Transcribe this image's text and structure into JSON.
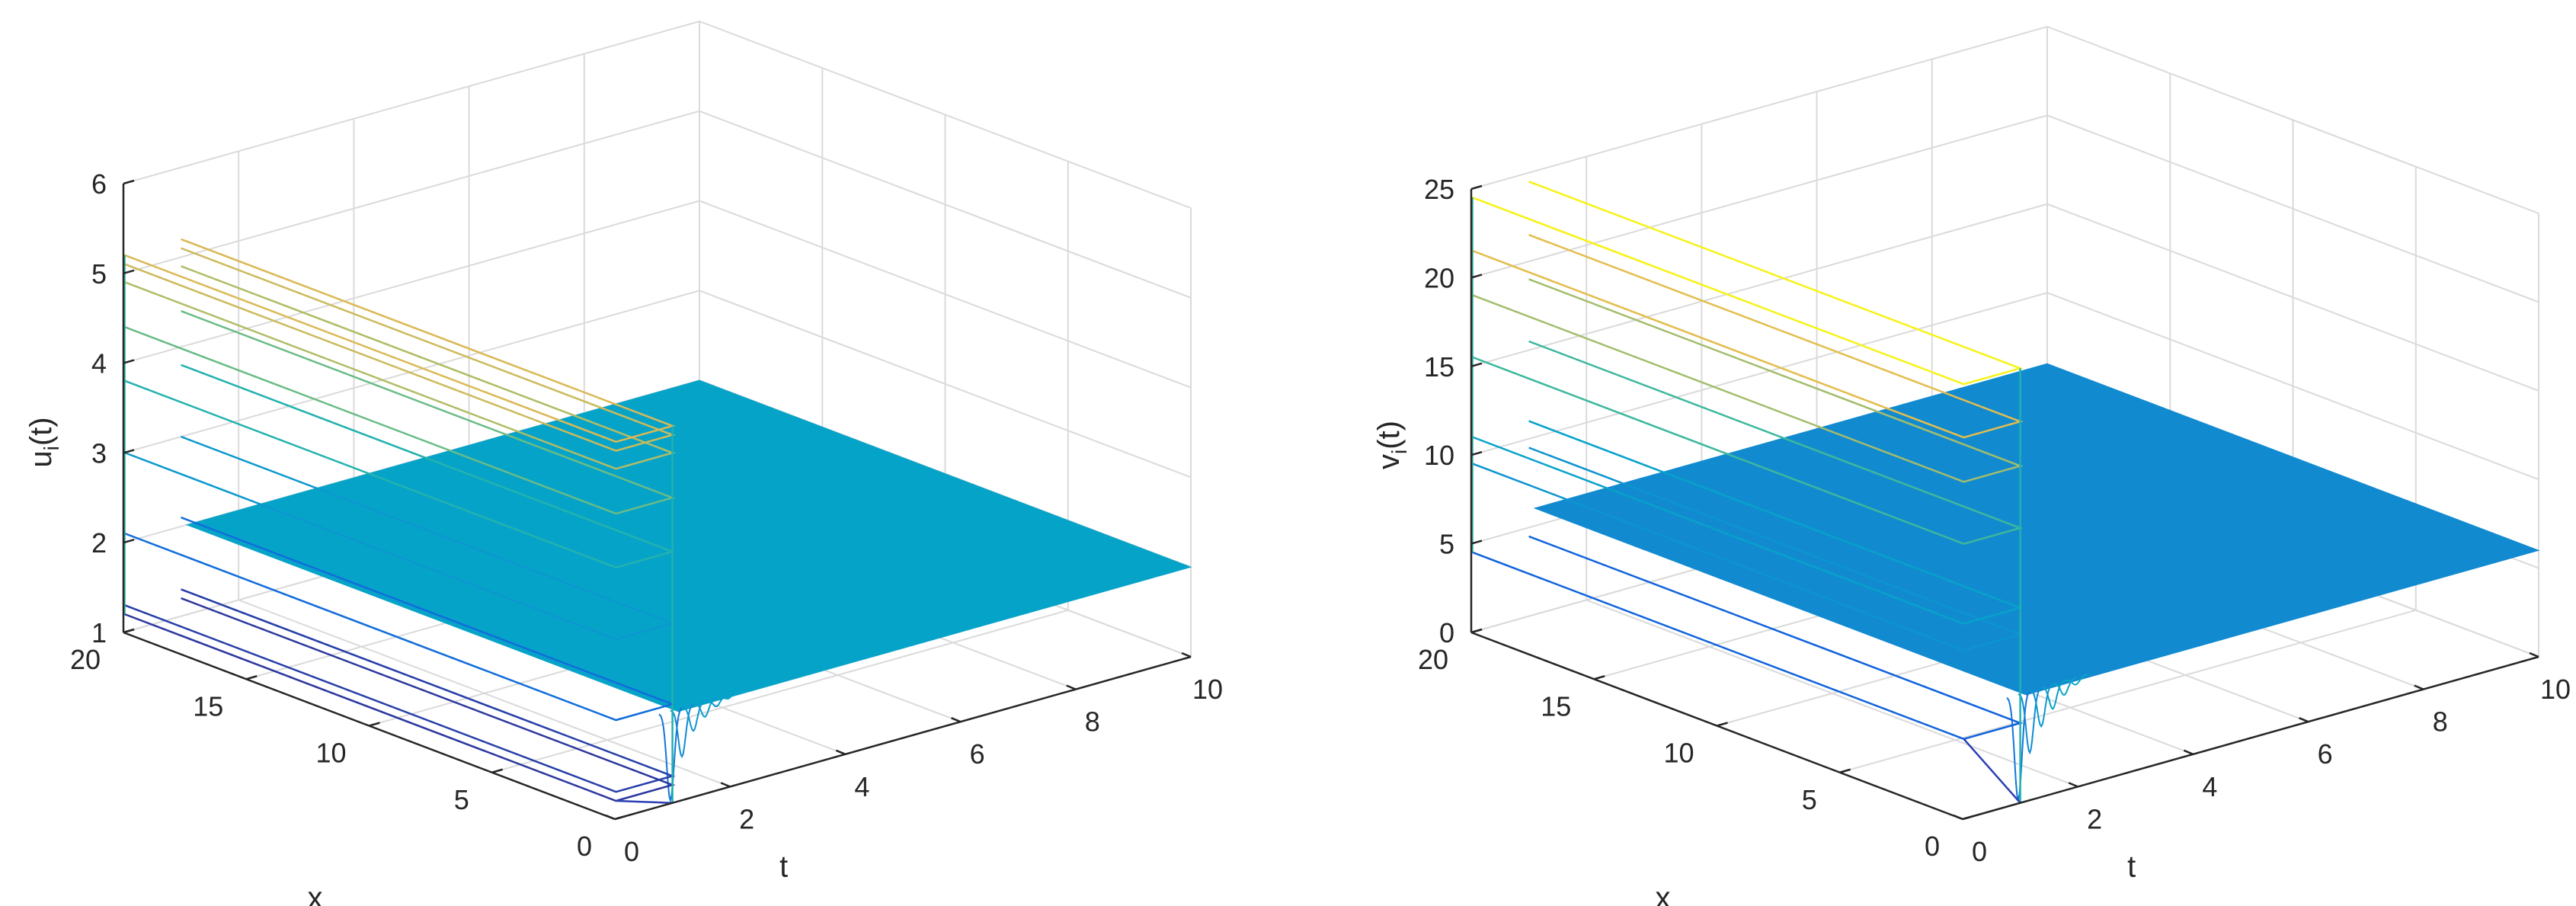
{
  "chart_data": [
    {
      "type": "surface",
      "zlabel": "u",
      "zlabel_sub": "i",
      "zlabel_suffix": "(t)",
      "xlabel": "t",
      "ylabel": "x",
      "xlim": [
        0,
        10
      ],
      "ylim": [
        0,
        20
      ],
      "zlim": [
        1,
        6
      ],
      "xticks": [
        0,
        2,
        4,
        6,
        8,
        10
      ],
      "yticks": [
        0,
        5,
        10,
        15,
        20
      ],
      "zticks": [
        1,
        2,
        3,
        4,
        5,
        6
      ],
      "grid": true,
      "colormap": "parula",
      "description_values": {
        "initial_plateau_t0": 5.0,
        "initial_min_t0": 1.2,
        "dip_min_near_t1": 1.0,
        "steady_state": 2.0
      },
      "t0_contour_levels": [
        1.2,
        1.3,
        2.1,
        3.0,
        3.8,
        4.4,
        4.9,
        5.1,
        5.2
      ],
      "dip_curves": [
        {
          "t": 1.05,
          "z": 1.0
        },
        {
          "t": 1.25,
          "z": 1.45
        },
        {
          "t": 1.45,
          "z": 1.7
        },
        {
          "t": 1.65,
          "z": 1.82
        },
        {
          "t": 1.85,
          "z": 1.9
        },
        {
          "t": 2.05,
          "z": 1.95
        }
      ],
      "colors": {
        "surface": "#06a3c9",
        "low": "#2d3fb4",
        "high": "#f5e728"
      }
    },
    {
      "type": "surface",
      "zlabel": "v",
      "zlabel_sub": "i",
      "zlabel_suffix": "(t)",
      "xlabel": "t",
      "ylabel": "x",
      "xlim": [
        0,
        10
      ],
      "ylim": [
        0,
        20
      ],
      "zlim": [
        0,
        25
      ],
      "xticks": [
        0,
        2,
        4,
        6,
        8,
        10
      ],
      "yticks": [
        0,
        5,
        10,
        15,
        20
      ],
      "zticks": [
        0,
        5,
        10,
        15,
        20,
        25
      ],
      "grid": true,
      "colormap": "parula",
      "description_values": {
        "initial_plateau_t0": 24.5,
        "initial_min_t0": 4.5,
        "dip_min_near_t1": 0.0,
        "steady_state": 6.0
      },
      "t0_contour_levels": [
        4.5,
        9.5,
        11.0,
        15.5,
        19.0,
        21.5,
        24.5
      ],
      "dip_curves": [
        {
          "t": 1.05,
          "z": 0.0
        },
        {
          "t": 1.25,
          "z": 2.5
        },
        {
          "t": 1.45,
          "z": 3.8
        },
        {
          "t": 1.65,
          "z": 4.6
        },
        {
          "t": 1.85,
          "z": 5.2
        },
        {
          "t": 2.05,
          "z": 5.6
        }
      ],
      "colors": {
        "surface": "#128ad0",
        "low": "#2d3fb4",
        "high": "#f5e728"
      }
    }
  ]
}
